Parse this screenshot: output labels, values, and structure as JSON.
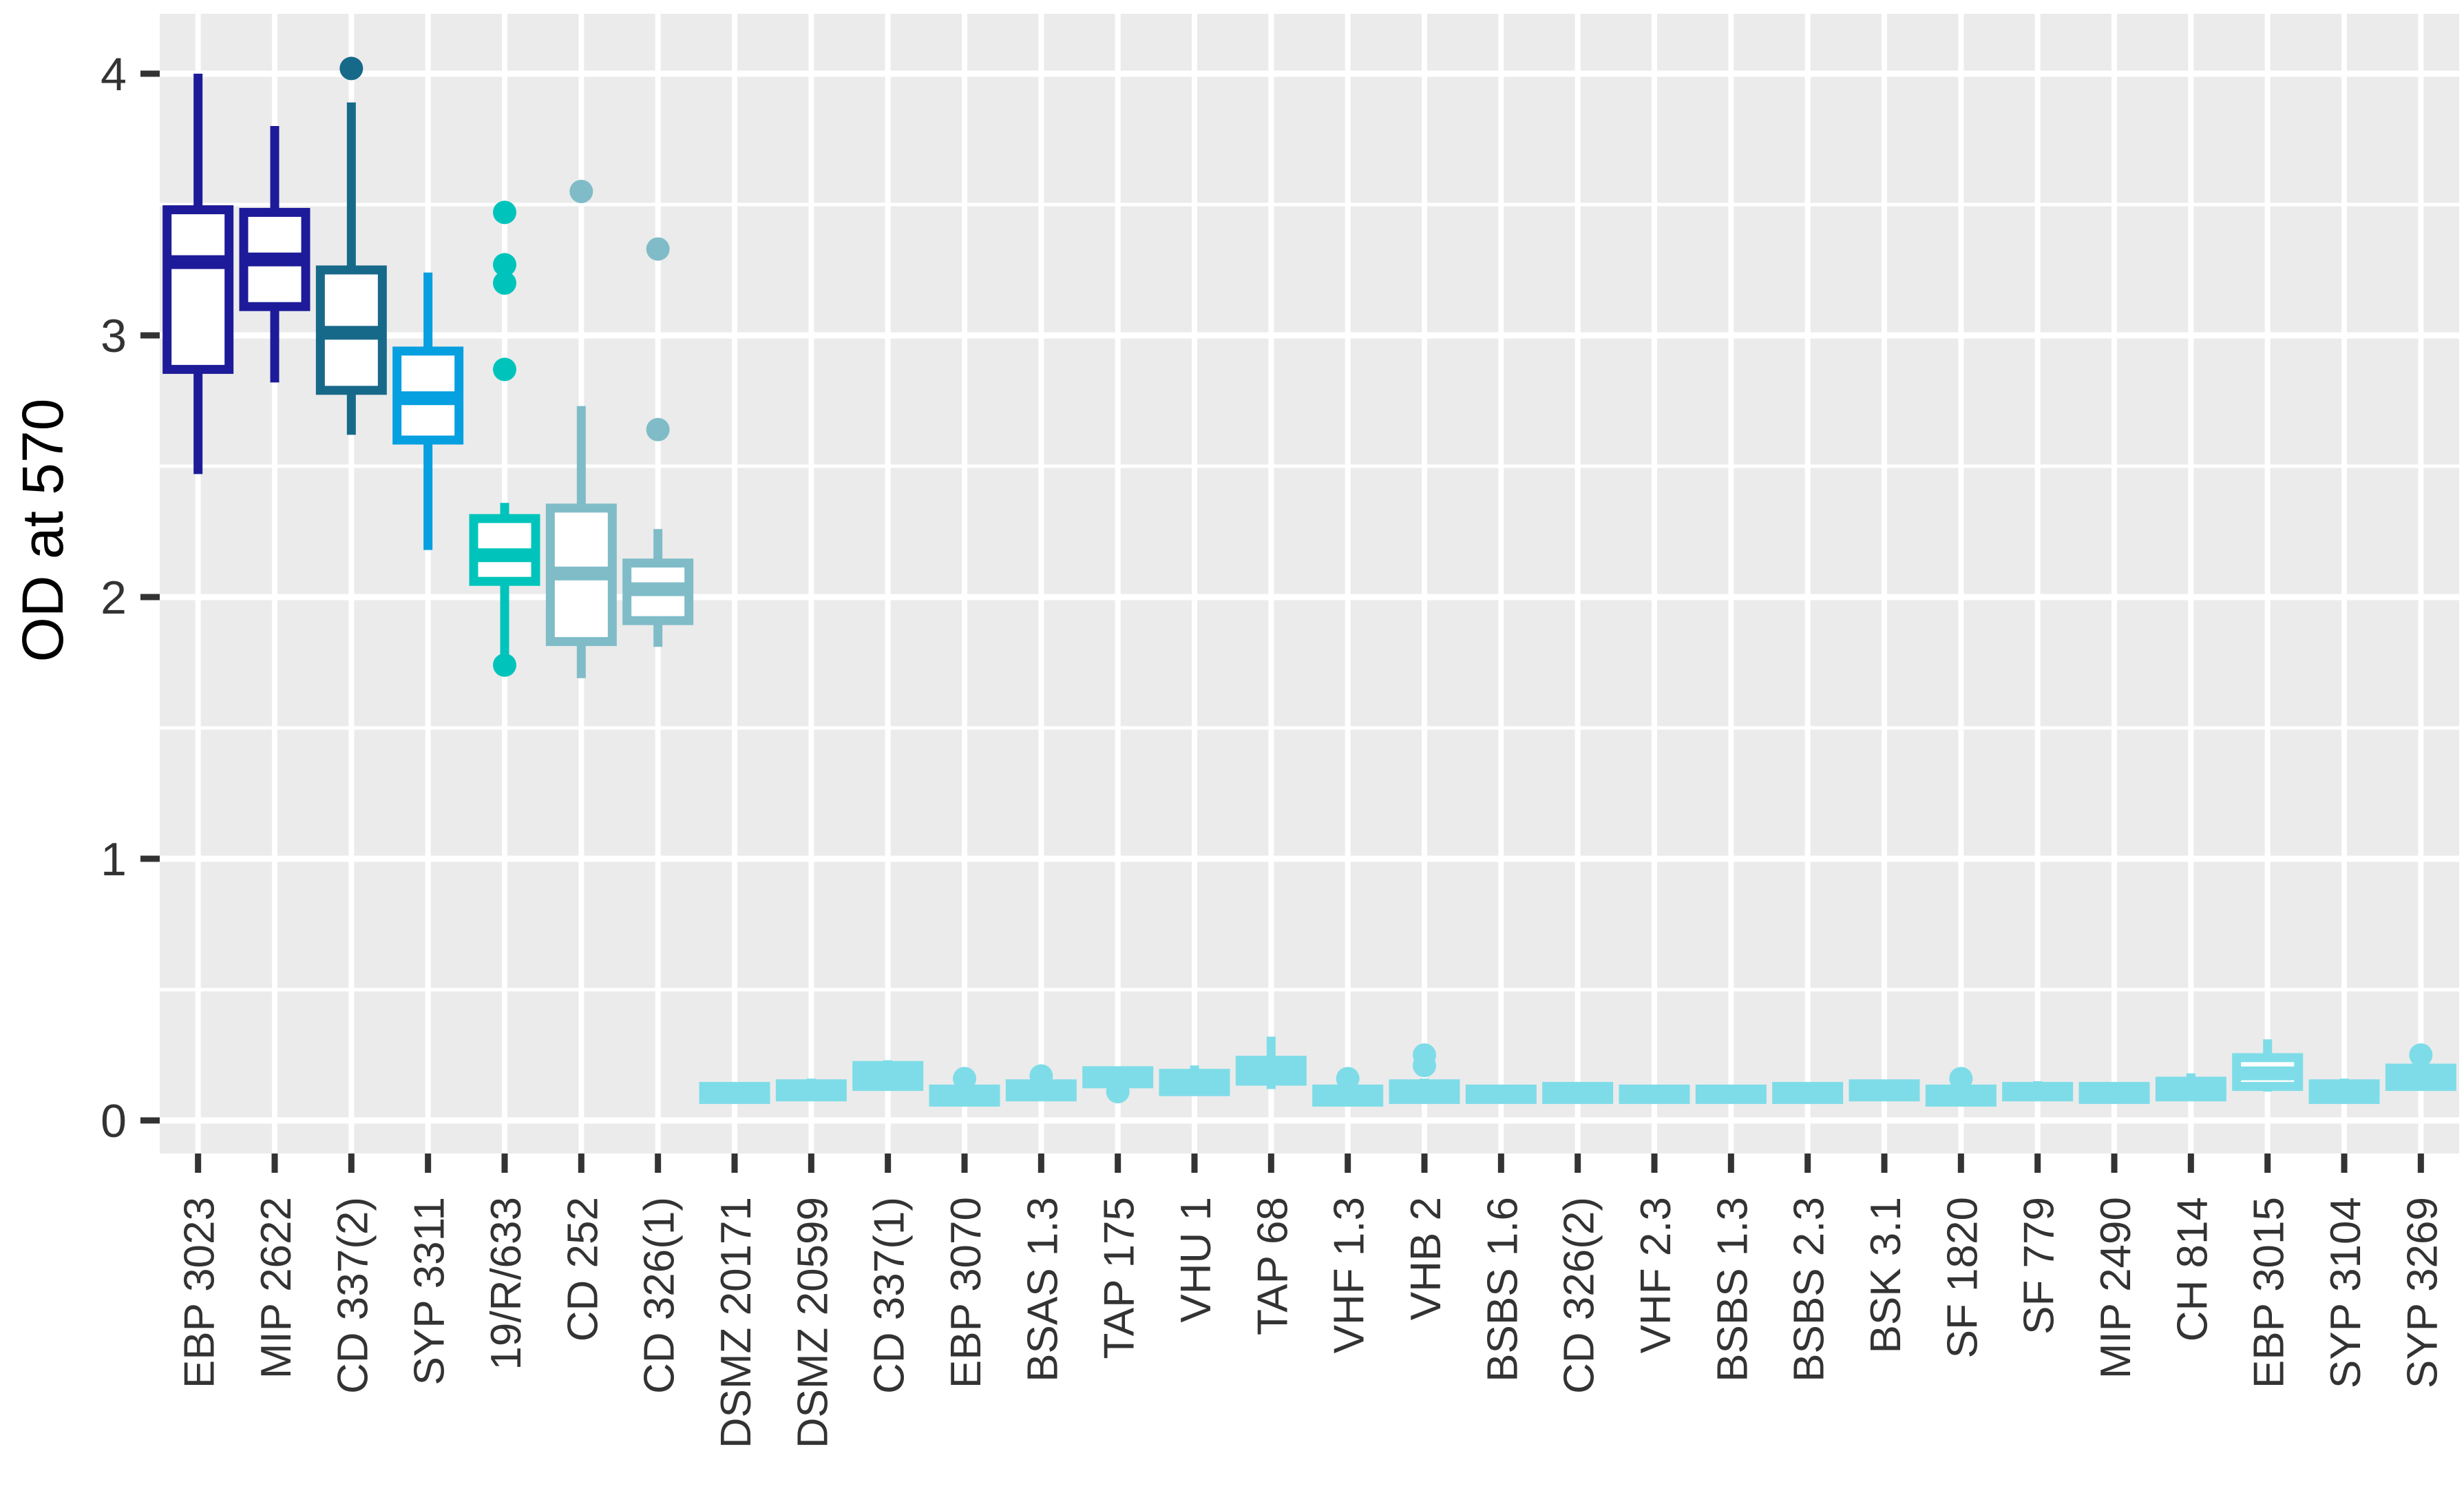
{
  "figure": {
    "background": "#ffffff",
    "panel_background": "#ebebeb",
    "grid_major_color": "#ffffff",
    "grid_minor_color": "#ffffff",
    "tick_mark_color": "#333333",
    "axis_text_color": "#333333",
    "axis_title_color": "#000000"
  },
  "chart_data": {
    "type": "boxplot",
    "title": "",
    "xlabel": "",
    "ylabel": "OD at 570",
    "ylim": [
      -0.13,
      4.23
    ],
    "yticks": [
      0,
      1,
      2,
      3,
      4
    ],
    "yticks_minor": [
      0.5,
      1.5,
      2.5,
      3.5
    ],
    "grid": "major-and-minor-horizontal, major-vertical-per-category",
    "legend": "none",
    "categories": [
      "EBP 3023",
      "MIP 2622",
      "CD 337(2)",
      "SYP 3311",
      "19/R/633",
      "CD 252",
      "CD 326(1)",
      "DSMZ 20171",
      "DSMZ 20599",
      "CD 337(1)",
      "EBP 3070",
      "BSAS 1.3",
      "TAP 175",
      "VHU 1",
      "TAP 68",
      "VHF 1.3",
      "VHB 2",
      "BSBS 1.6",
      "CD 326(2)",
      "VHF 2.3",
      "BSBS 1.3",
      "BSBS 2.3",
      "BSK 3.1",
      "SF 1820",
      "SF 779",
      "MIP 2490",
      "CH 814",
      "EBP 3015",
      "SYP 3104",
      "SYP 3269"
    ],
    "boxes": [
      {
        "label": "EBP 3023",
        "color": "#1d1b99",
        "low": 2.47,
        "q1": 2.87,
        "median": 3.28,
        "q3": 3.48,
        "high": 4.0,
        "outliers": []
      },
      {
        "label": "MIP 2622",
        "color": "#1d1b99",
        "low": 2.82,
        "q1": 3.11,
        "median": 3.29,
        "q3": 3.47,
        "high": 3.8,
        "outliers": []
      },
      {
        "label": "CD 337(2)",
        "color": "#17698a",
        "low": 2.62,
        "q1": 2.79,
        "median": 3.01,
        "q3": 3.25,
        "high": 3.89,
        "outliers": [
          4.02
        ]
      },
      {
        "label": "SYP 3311",
        "color": "#069fe0",
        "low": 2.18,
        "q1": 2.6,
        "median": 2.76,
        "q3": 2.94,
        "high": 3.24,
        "outliers": []
      },
      {
        "label": "19/R/633",
        "color": "#00c4bb",
        "low": 1.77,
        "q1": 2.06,
        "median": 2.16,
        "q3": 2.3,
        "high": 2.36,
        "outliers": [
          3.47,
          3.27,
          3.2,
          2.87,
          1.74
        ]
      },
      {
        "label": "CD 252",
        "color": "#7fbcc8",
        "low": 1.69,
        "q1": 1.83,
        "median": 2.09,
        "q3": 2.34,
        "high": 2.73,
        "outliers": [
          3.55
        ]
      },
      {
        "label": "CD 326(1)",
        "color": "#7fbcc8",
        "low": 1.81,
        "q1": 1.91,
        "median": 2.03,
        "q3": 2.13,
        "high": 2.26,
        "outliers": [
          3.33,
          2.64
        ]
      },
      {
        "label": "DSMZ 20171",
        "color": "#7edce8",
        "low": 0.07,
        "q1": 0.08,
        "median": 0.1,
        "q3": 0.13,
        "high": 0.14,
        "outliers": []
      },
      {
        "label": "DSMZ 20599",
        "color": "#7edce8",
        "low": 0.08,
        "q1": 0.09,
        "median": 0.11,
        "q3": 0.14,
        "high": 0.16,
        "outliers": []
      },
      {
        "label": "CD 337(1)",
        "color": "#7edce8",
        "low": 0.12,
        "q1": 0.13,
        "median": 0.17,
        "q3": 0.21,
        "high": 0.23,
        "outliers": []
      },
      {
        "label": "EBP 3070",
        "color": "#7edce8",
        "low": 0.06,
        "q1": 0.07,
        "median": 0.09,
        "q3": 0.12,
        "high": 0.13,
        "outliers": [
          0.16
        ]
      },
      {
        "label": "BSAS 1.3",
        "color": "#7edce8",
        "low": 0.08,
        "q1": 0.09,
        "median": 0.11,
        "q3": 0.14,
        "high": 0.15,
        "outliers": [
          0.17
        ]
      },
      {
        "label": "TAP 175",
        "color": "#7edce8",
        "low": 0.13,
        "q1": 0.14,
        "median": 0.16,
        "q3": 0.19,
        "high": 0.2,
        "outliers": [
          0.11
        ]
      },
      {
        "label": "VHU 1",
        "color": "#7edce8",
        "low": 0.1,
        "q1": 0.11,
        "median": 0.14,
        "q3": 0.18,
        "high": 0.21,
        "outliers": []
      },
      {
        "label": "TAP 68",
        "color": "#7edce8",
        "low": 0.12,
        "q1": 0.15,
        "median": 0.19,
        "q3": 0.23,
        "high": 0.32,
        "outliers": []
      },
      {
        "label": "VHF 1.3",
        "color": "#7edce8",
        "low": 0.06,
        "q1": 0.07,
        "median": 0.09,
        "q3": 0.12,
        "high": 0.13,
        "outliers": [
          0.16
        ]
      },
      {
        "label": "VHB 2",
        "color": "#7edce8",
        "low": 0.07,
        "q1": 0.08,
        "median": 0.11,
        "q3": 0.14,
        "high": 0.16,
        "outliers": [
          0.25,
          0.21
        ]
      },
      {
        "label": "BSBS 1.6",
        "color": "#7edce8",
        "low": 0.07,
        "q1": 0.08,
        "median": 0.1,
        "q3": 0.12,
        "high": 0.13,
        "outliers": []
      },
      {
        "label": "CD 326(2)",
        "color": "#7edce8",
        "low": 0.07,
        "q1": 0.08,
        "median": 0.1,
        "q3": 0.13,
        "high": 0.14,
        "outliers": []
      },
      {
        "label": "VHF 2.3",
        "color": "#7edce8",
        "low": 0.07,
        "q1": 0.08,
        "median": 0.1,
        "q3": 0.12,
        "high": 0.13,
        "outliers": []
      },
      {
        "label": "BSBS 1.3",
        "color": "#7edce8",
        "low": 0.07,
        "q1": 0.08,
        "median": 0.1,
        "q3": 0.12,
        "high": 0.13,
        "outliers": []
      },
      {
        "label": "BSBS 2.3",
        "color": "#7edce8",
        "low": 0.07,
        "q1": 0.08,
        "median": 0.1,
        "q3": 0.13,
        "high": 0.14,
        "outliers": []
      },
      {
        "label": "BSK 3.1",
        "color": "#7edce8",
        "low": 0.08,
        "q1": 0.09,
        "median": 0.11,
        "q3": 0.14,
        "high": 0.15,
        "outliers": []
      },
      {
        "label": "SF 1820",
        "color": "#7edce8",
        "low": 0.06,
        "q1": 0.07,
        "median": 0.09,
        "q3": 0.12,
        "high": 0.13,
        "outliers": [
          0.16
        ]
      },
      {
        "label": "SF 779",
        "color": "#7edce8",
        "low": 0.08,
        "q1": 0.09,
        "median": 0.11,
        "q3": 0.13,
        "high": 0.15,
        "outliers": []
      },
      {
        "label": "MIP 2490",
        "color": "#7edce8",
        "low": 0.07,
        "q1": 0.08,
        "median": 0.1,
        "q3": 0.13,
        "high": 0.14,
        "outliers": []
      },
      {
        "label": "CH 814",
        "color": "#7edce8",
        "low": 0.08,
        "q1": 0.09,
        "median": 0.12,
        "q3": 0.15,
        "high": 0.18,
        "outliers": []
      },
      {
        "label": "EBP 3015",
        "color": "#7edce8",
        "low": 0.11,
        "q1": 0.13,
        "median": 0.18,
        "q3": 0.24,
        "high": 0.31,
        "outliers": []
      },
      {
        "label": "SYP 3104",
        "color": "#7edce8",
        "low": 0.07,
        "q1": 0.08,
        "median": 0.11,
        "q3": 0.14,
        "high": 0.16,
        "outliers": []
      },
      {
        "label": "SYP 3269",
        "color": "#7edce8",
        "low": 0.12,
        "q1": 0.13,
        "median": 0.16,
        "q3": 0.2,
        "high": 0.21,
        "outliers": [
          0.25
        ]
      }
    ]
  }
}
